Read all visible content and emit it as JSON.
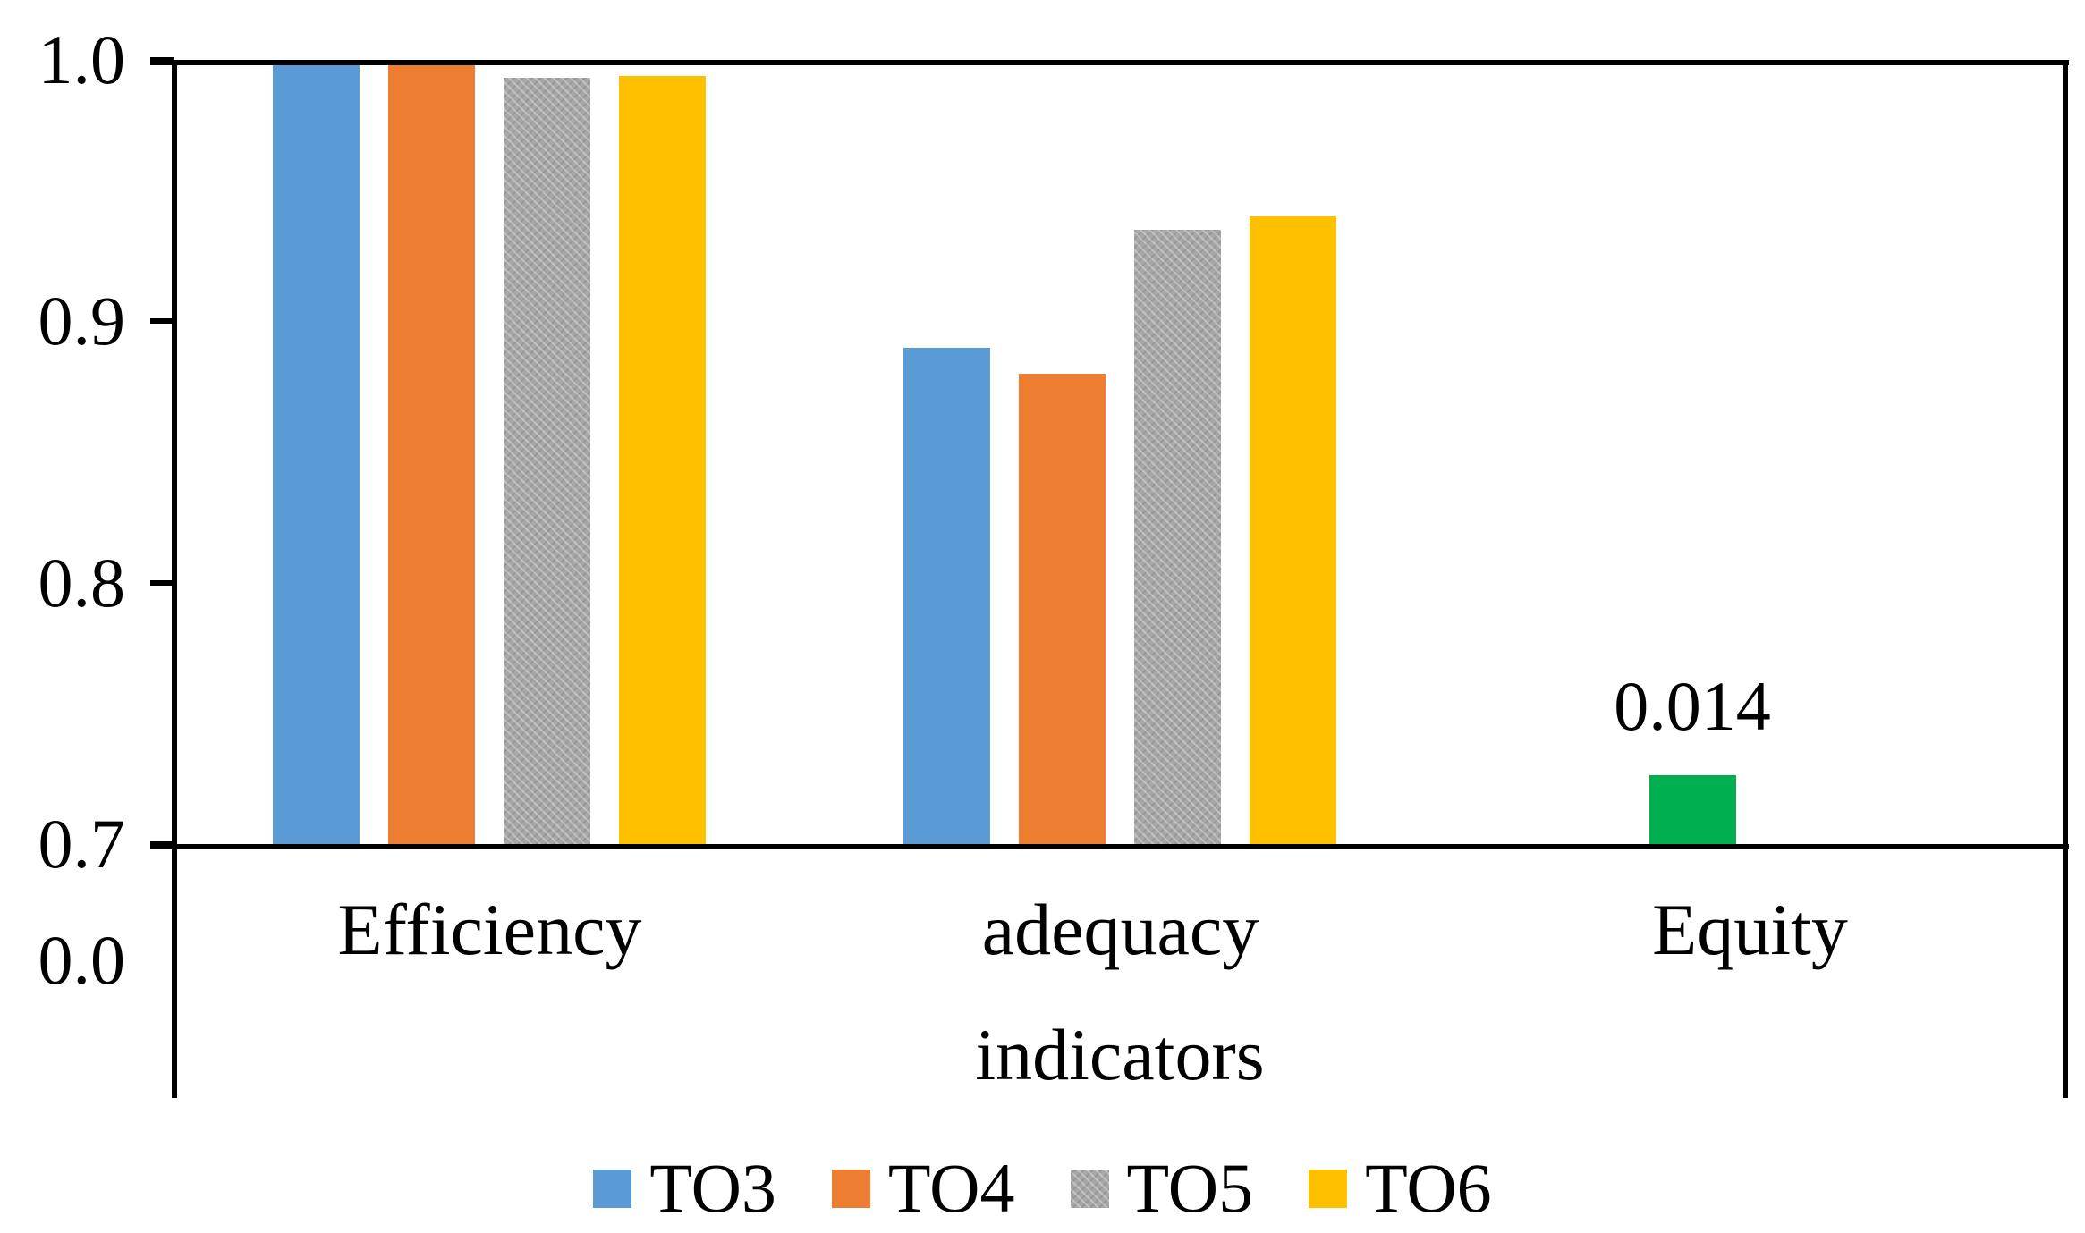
{
  "chart_data": {
    "type": "bar",
    "title": "",
    "categories": [
      "Efficiency",
      "adequacy",
      "Equity"
    ],
    "series": [
      {
        "name": "TO3",
        "color": "#5B9BD5",
        "pattern": false,
        "values": [
          1.0,
          0.89,
          null
        ]
      },
      {
        "name": "TO4",
        "color": "#ED7D31",
        "pattern": false,
        "values": [
          1.0,
          0.88,
          null
        ]
      },
      {
        "name": "TO5",
        "color": "#A7A7A7",
        "pattern": true,
        "values": [
          0.993,
          0.935,
          null
        ]
      },
      {
        "name": "TO6",
        "color": "#FFC000",
        "pattern": false,
        "values": [
          0.994,
          0.94,
          null
        ]
      }
    ],
    "equity_bar": {
      "category": "Equity",
      "series_slot": 1,
      "value": 0.014,
      "label": "0.014",
      "color": "#00B050"
    },
    "xlabel": "indicators",
    "ylabel": "",
    "ylim": [
      0.7,
      1.0
    ],
    "y_ticks": [
      {
        "label": "1.0",
        "value": 1.0
      },
      {
        "label": "0.9",
        "value": 0.9
      },
      {
        "label": "0.8",
        "value": 0.8
      },
      {
        "label": "0.7",
        "value": 0.7
      }
    ],
    "axis_break_label": "0.0",
    "axis_break": true,
    "grid": false,
    "legend_position": "bottom",
    "axis_color": "#000000",
    "background_color": "#FFFFFF"
  }
}
